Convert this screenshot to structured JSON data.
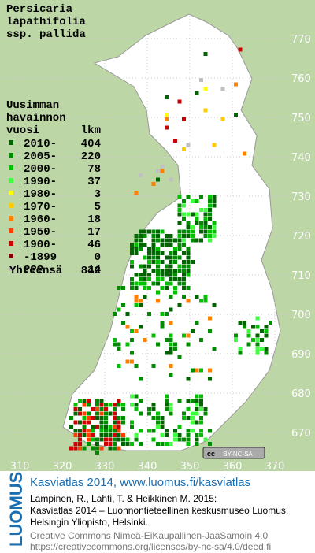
{
  "title_lines": [
    "Persicaria",
    "lapathifolia",
    "ssp. pallida"
  ],
  "legend": {
    "heading_lines": [
      "Uusimman",
      "havainnon"
    ],
    "year_header": "vuosi",
    "count_header": "lkm",
    "items": [
      {
        "label": "2010-",
        "count": 404,
        "color": "#006400"
      },
      {
        "label": "2005-",
        "count": 220,
        "color": "#008c00"
      },
      {
        "label": "2000-",
        "count": 78,
        "color": "#00c000"
      },
      {
        "label": "1990-",
        "count": 37,
        "color": "#40ff40"
      },
      {
        "label": "1980-",
        "count": 3,
        "color": "#ffff00"
      },
      {
        "label": "1970-",
        "count": 5,
        "color": "#ffcc00"
      },
      {
        "label": "1960-",
        "count": 18,
        "color": "#ff8000"
      },
      {
        "label": "1950-",
        "count": 17,
        "color": "#ff4000"
      },
      {
        "label": "1900-",
        "count": 46,
        "color": "#cc0000"
      },
      {
        "label": "-1899",
        "count": 0,
        "color": "#800000"
      },
      {
        "label": "???",
        "count": 14,
        "color": "#c0c0c0"
      }
    ],
    "total": {
      "label": "Yhteensä",
      "count": 842
    }
  },
  "map": {
    "y_grid_labels": [
      770,
      760,
      750,
      740,
      730,
      720,
      710,
      700,
      690,
      680,
      670
    ],
    "x_grid_labels": [
      310,
      320,
      330,
      340,
      350,
      360,
      370
    ],
    "license_badge": [
      "cc",
      "BY-NC-SA"
    ]
  },
  "footer": {
    "logo": "LUOMUS",
    "atlas_line": "Kasviatlas 2014, www.luomus.fi/kasviatlas",
    "citation_lines": [
      "Lampinen, R., Lahti, T. & Heikkinen M. 2015:",
      "Kasviatlas 2014 – Luonnontieteellinen keskusmuseo Luomus,",
      "Helsingin Yliopisto, Helsinki."
    ],
    "license_lines": [
      "Creative Commons Nimeä-EiKaupallinen-JaaSamoin 4.0",
      "https://creativecommons.org/licenses/by-nc-sa/4.0/deed.fi"
    ]
  }
}
